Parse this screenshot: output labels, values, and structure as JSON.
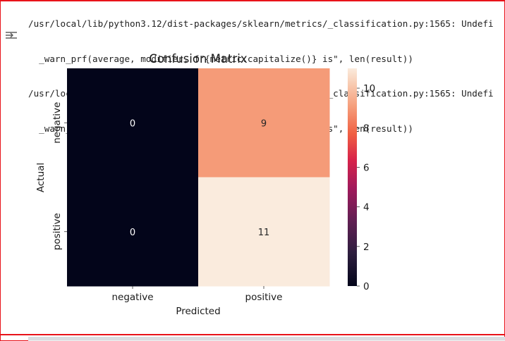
{
  "output": {
    "log_lines": [
      "/usr/local/lib/python3.12/dist-packages/sklearn/metrics/_classification.py:1565: Undefi",
      "  _warn_prf(average, modifier, f\"{metric.capitalize()} is\", len(result))",
      "/usr/local/lib/python3.12/dist-packages/sklearn/metrics/_classification.py:1565: Undefi",
      "  _warn_prf(average, modifier, f\"{metric.capitalize()} is\", len(result))"
    ]
  },
  "icons": {
    "output_toggle": "output-toggle-icon"
  },
  "colors": {
    "frame": "#e8131a"
  },
  "chart_data": {
    "type": "heatmap",
    "title": "Confusion Matrix",
    "xlabel": "Predicted",
    "ylabel": "Actual",
    "x_categories": [
      "negative",
      "positive"
    ],
    "y_categories": [
      "negative",
      "positive"
    ],
    "values": [
      [
        0,
        9
      ],
      [
        0,
        11
      ]
    ],
    "annotations": [
      "0",
      "9",
      "0",
      "11"
    ],
    "colormap": "rocket",
    "colorbar": {
      "range": [
        0,
        11
      ],
      "ticks": [
        0,
        2,
        4,
        6,
        8,
        10
      ]
    }
  }
}
